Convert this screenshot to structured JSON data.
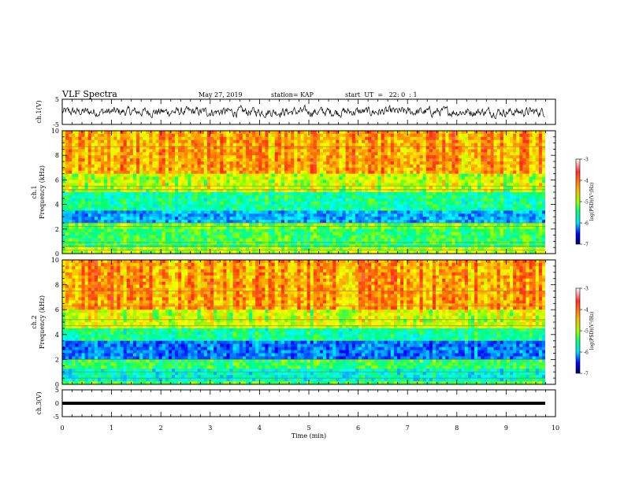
{
  "header": {
    "title": "VLF Spectra",
    "date": "May 27, 2019",
    "station": "station= KAP",
    "start": "start  UT  =   22: 0  : 1"
  },
  "chart_data": [
    {
      "type": "line",
      "panel": "ch1-waveform",
      "ylabel": "ch.1(V)",
      "ylim": [
        -5,
        5
      ],
      "yticks": [
        "5",
        "-5"
      ],
      "xlim": [
        0,
        10
      ],
      "series": [
        {
          "values": "noisy waveform approx. between -2 and 2 V for 0-9.8 min"
        }
      ]
    },
    {
      "type": "heatmap",
      "panel": "ch1-spectrogram",
      "ylabel": "ch.1\nFrequency (kHz)",
      "ylabel_line1": "ch.1",
      "ylabel_line2": "Frequency (kHz)",
      "ylim": [
        0,
        10
      ],
      "yticks": [
        "0",
        "2",
        "4",
        "6",
        "8",
        "10"
      ],
      "xlim": [
        0,
        9.8
      ],
      "colorbar": {
        "range": [
          -3,
          -7
        ],
        "ticks": [
          "-3",
          "-4",
          "-5",
          "-6",
          "-7"
        ],
        "label": "log(PSD)(V²/Hz)"
      },
      "bands_khz": [
        [
          0,
          0.5,
          "yellow-green"
        ],
        [
          0.5,
          2,
          "green"
        ],
        [
          2,
          2.5,
          "green-yellow"
        ],
        [
          2.5,
          3.6,
          "blue-cyan"
        ],
        [
          3.6,
          5,
          "cyan-green"
        ],
        [
          5,
          6.5,
          "yellow"
        ],
        [
          6.5,
          10,
          "orange-red"
        ]
      ]
    },
    {
      "type": "heatmap",
      "panel": "ch2-spectrogram",
      "ylabel_line1": "ch.2",
      "ylabel_line2": "Frequency (kHz)",
      "ylim": [
        0,
        10
      ],
      "yticks": [
        "0",
        "2",
        "4",
        "6",
        "8",
        "10"
      ],
      "xlim": [
        0,
        9.8
      ],
      "colorbar": {
        "range": [
          -3,
          -7
        ],
        "ticks": [
          "-3",
          "-4",
          "-5",
          "-6",
          "-7"
        ],
        "label": "log(PSD)(V²/Hz)"
      },
      "bands_khz": [
        [
          0,
          0.3,
          "green"
        ],
        [
          0.3,
          1.2,
          "cyan-green"
        ],
        [
          1.2,
          2,
          "green"
        ],
        [
          2,
          3.6,
          "blue"
        ],
        [
          3.6,
          4.5,
          "cyan-green"
        ],
        [
          4.5,
          6,
          "yellow"
        ],
        [
          6,
          10,
          "orange-red"
        ]
      ]
    },
    {
      "type": "line",
      "panel": "ch3-waveform",
      "ylabel": "ch.3(V)",
      "ylim": [
        -5,
        5
      ],
      "yticks": [
        "5",
        "0",
        "-5"
      ],
      "xlim": [
        0,
        10
      ],
      "xticks": [
        "0",
        "1",
        "2",
        "3",
        "4",
        "5",
        "6",
        "7",
        "8",
        "9",
        "10"
      ],
      "xlabel": "Time  (min)",
      "series": [
        {
          "values": "flat line at approx. 0 V"
        }
      ]
    }
  ],
  "colors": {
    "axis": "#000000",
    "colormap": [
      "#000080",
      "#0000ff",
      "#00a0ff",
      "#00ffff",
      "#00ff60",
      "#80ff00",
      "#ffff00",
      "#ff8000",
      "#ff0000",
      "#ff8080",
      "#ffffff"
    ]
  }
}
